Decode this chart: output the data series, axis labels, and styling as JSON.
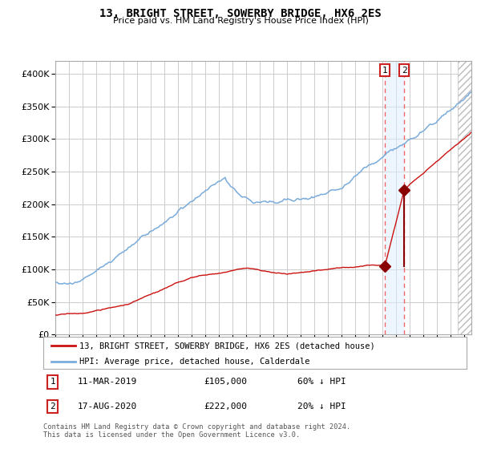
{
  "title": "13, BRIGHT STREET, SOWERBY BRIDGE, HX6 2ES",
  "subtitle": "Price paid vs. HM Land Registry's House Price Index (HPI)",
  "legend_line1": "13, BRIGHT STREET, SOWERBY BRIDGE, HX6 2ES (detached house)",
  "legend_line2": "HPI: Average price, detached house, Calderdale",
  "transaction1_date": "11-MAR-2019",
  "transaction1_price": 105000,
  "transaction1_pct": "60% ↓ HPI",
  "transaction2_date": "17-AUG-2020",
  "transaction2_price": 222000,
  "transaction2_pct": "20% ↓ HPI",
  "footer": "Contains HM Land Registry data © Crown copyright and database right 2024.\nThis data is licensed under the Open Government Licence v3.0.",
  "hpi_color": "#7aacdb",
  "price_color": "#cc1111",
  "marker_color": "#880000",
  "dashed_color": "#ee6666",
  "grid_color": "#cccccc",
  "ylim": [
    0,
    420000
  ],
  "xlim_start": 1995.0,
  "xlim_end": 2025.5,
  "t1": 2019.17,
  "t2": 2020.58,
  "hatch_start": 2024.5
}
